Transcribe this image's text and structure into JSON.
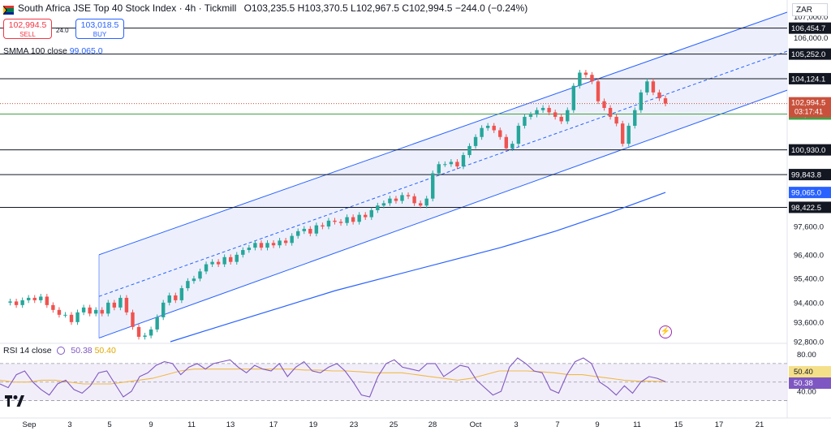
{
  "header": {
    "symbol_title": "South Africa JSE Top 40 Stock Index · 4h · Tickmill",
    "ohlc": "O103,235.5 H103,370.5 L102,967.5 C102,994.5",
    "change": "−244.0 (−0.24%)",
    "sell_price": "102,994.5",
    "sell_label": "SELL",
    "buy_price": "103,018.5",
    "buy_label": "BUY",
    "spread": "24.0",
    "smma_label": "SMMA 100 close",
    "smma_value": "99,065.0",
    "currency": "ZAR"
  },
  "colors": {
    "up": "#26a69a",
    "down": "#ef5350",
    "channel": "#2962ff",
    "channel_fill": "#e8ecfb",
    "smma": "#2962ff",
    "rsi": "#7e57c2",
    "rsi_ma": "#f0b94a",
    "support_green": "#43a047",
    "last_price": "#c9513c"
  },
  "chart_data": [
    {
      "type": "candlestick",
      "title": "South Africa JSE Top 40 Stock Index · 4h · Tickmill",
      "x_tick_labels": [
        "Sep",
        "3",
        "5",
        "9",
        "11",
        "13",
        "17",
        "19",
        "23",
        "25",
        "28",
        "Oct",
        "3",
        "7",
        "9",
        "11",
        "15",
        "17",
        "21"
      ],
      "y_tick_labels": [
        "107,000.0",
        "106,000.0",
        "97,600.0",
        "96,400.0",
        "95,400.0",
        "94,400.0",
        "93,600.0",
        "92,800.0"
      ],
      "close_path": [
        94400,
        94450,
        94300,
        94500,
        94600,
        94500,
        94650,
        94300,
        94100,
        93900,
        93900,
        93600,
        94000,
        94200,
        93950,
        94100,
        93950,
        94400,
        94200,
        94600,
        94000,
        93400,
        93000,
        93050,
        93300,
        93800,
        94400,
        94700,
        94500,
        95000,
        95300,
        95400,
        95700,
        96000,
        96100,
        96000,
        96300,
        96100,
        96400,
        96600,
        96700,
        96900,
        96700,
        96900,
        96800,
        97000,
        96900,
        97200,
        97400,
        97500,
        97300,
        97650,
        97600,
        97850,
        97800,
        97750,
        98000,
        97800,
        98100,
        98000,
        98300,
        98500,
        98600,
        98800,
        98700,
        98950,
        98900,
        98600,
        98500,
        98800,
        99900,
        100300,
        100300,
        100400,
        100200,
        100700,
        101100,
        101500,
        101900,
        102000,
        101800,
        101500,
        101000,
        101200,
        102000,
        102400,
        102500,
        102700,
        102800,
        102600,
        102400,
        102200,
        102700,
        103800,
        104400,
        104300,
        104000,
        103100,
        102800,
        102400,
        102100,
        101200,
        102000,
        102700,
        103500,
        104000,
        103500,
        103235.5,
        102994.5
      ],
      "levels": [
        {
          "value": 106454.7,
          "label": "106,454.7"
        },
        {
          "value": 105252.0,
          "label": "105,252.0"
        },
        {
          "value": 104124.1,
          "label": "104,124.1"
        },
        {
          "value": 102526.1,
          "label": "102,526.1"
        },
        {
          "value": 100930.0,
          "label": "100,930.0"
        },
        {
          "value": 99843.8,
          "label": "99,843.8"
        },
        {
          "value": 98422.5,
          "label": "98,422.5"
        }
      ],
      "last_price": {
        "value": 102994.5,
        "label": "102,994.5",
        "countdown": "03:17:41"
      },
      "smma_100": {
        "name": "SMMA 100 close",
        "value": 99065.0,
        "label": "99,065.0",
        "path": [
          92800,
          93500,
          94200,
          94900,
          95500,
          96100,
          96700,
          97400,
          98200,
          99065
        ]
      },
      "channel": {
        "upper_start": 96400,
        "upper_end": 107200,
        "lower_start": 92950,
        "lower_end": 103600
      },
      "log_scale": true
    },
    {
      "type": "line",
      "title": "RSI 14 close",
      "series": [
        {
          "name": "RSI",
          "label": "50.38",
          "values": [
            48,
            44,
            58,
            62,
            50,
            42,
            36,
            48,
            52,
            42,
            38,
            46,
            60,
            62,
            48,
            34,
            40,
            56,
            60,
            68,
            72,
            70,
            58,
            66,
            70,
            64,
            70,
            72,
            74,
            66,
            60,
            68,
            64,
            62,
            70,
            56,
            66,
            72,
            62,
            60,
            66,
            70,
            62,
            50,
            36,
            34,
            56,
            70,
            74,
            66,
            64,
            62,
            70,
            70,
            56,
            62,
            68,
            66,
            52,
            44,
            36,
            40,
            66,
            76,
            70,
            62,
            60,
            42,
            38,
            58,
            72,
            76,
            70,
            50,
            44,
            36,
            46,
            38,
            50,
            56,
            54,
            50.38
          ]
        },
        {
          "name": "MA",
          "label": "50.40",
          "values": [
            52,
            50,
            50,
            52,
            52,
            50,
            48,
            48,
            48,
            50,
            52,
            54,
            58,
            62,
            64,
            64,
            64,
            64,
            64,
            64,
            64,
            64,
            63,
            63,
            62,
            62,
            61,
            60,
            60,
            60,
            58,
            56,
            54,
            52,
            54,
            58,
            62,
            62,
            62,
            61,
            60,
            58,
            58,
            56,
            54,
            52,
            51,
            51,
            50.4
          ]
        }
      ],
      "y_tick_labels": [
        "80.00",
        "40.00"
      ],
      "ylim": [
        20,
        90
      ],
      "bands": [
        70,
        50,
        30
      ]
    }
  ]
}
